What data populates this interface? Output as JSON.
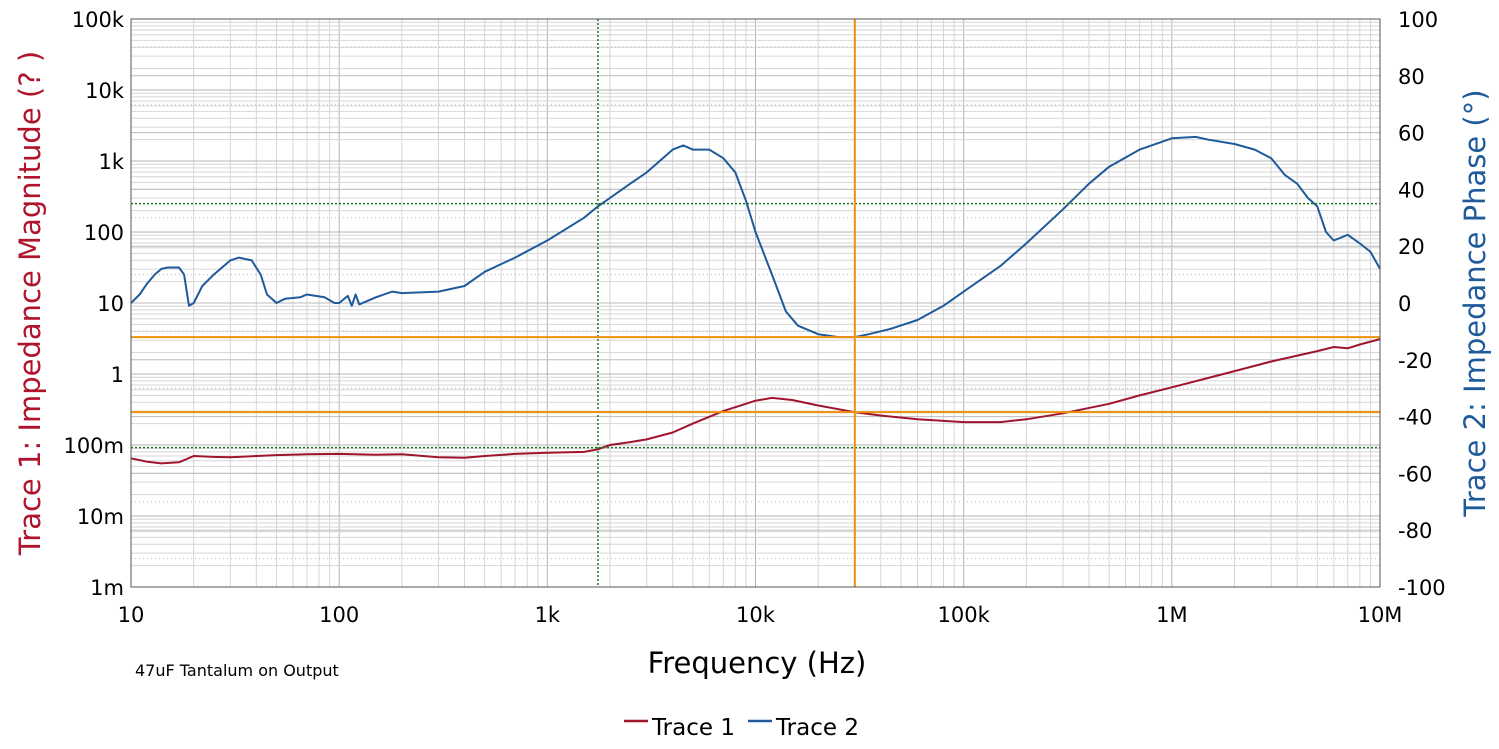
{
  "chart_data": {
    "type": "line",
    "xlabel": "Frequency (Hz)",
    "ylabel_left": "Trace 1: Impedance Magnitude (? )",
    "ylabel_right": "Trace 2: Impedance Phase (°)",
    "note": "47uF Tantalum on Output",
    "x_scale": "log",
    "xlim": [
      10,
      10000000
    ],
    "ylim_left": [
      0.001,
      100000
    ],
    "ylim_right": [
      -100,
      100
    ],
    "y_left_scale": "log",
    "grid": true,
    "legend_position": "bottom-center",
    "x_ticks": [
      {
        "value": 10,
        "label": "10"
      },
      {
        "value": 100,
        "label": "100"
      },
      {
        "value": 1000,
        "label": "1k"
      },
      {
        "value": 10000,
        "label": "10k"
      },
      {
        "value": 100000,
        "label": "100k"
      },
      {
        "value": 1000000,
        "label": "1M"
      },
      {
        "value": 10000000,
        "label": "10M"
      }
    ],
    "y_left_ticks": [
      {
        "value": 100000,
        "label": "100k"
      },
      {
        "value": 10000,
        "label": "10k"
      },
      {
        "value": 1000,
        "label": "1k"
      },
      {
        "value": 100,
        "label": "100"
      },
      {
        "value": 10,
        "label": "10"
      },
      {
        "value": 1,
        "label": "1"
      },
      {
        "value": 0.1,
        "label": "100m"
      },
      {
        "value": 0.01,
        "label": "10m"
      },
      {
        "value": 0.001,
        "label": "1m"
      }
    ],
    "y_right_ticks": [
      {
        "value": 100,
        "label": "100"
      },
      {
        "value": 80,
        "label": "80"
      },
      {
        "value": 60,
        "label": "60"
      },
      {
        "value": 40,
        "label": "40"
      },
      {
        "value": 20,
        "label": "20"
      },
      {
        "value": 0,
        "label": "0"
      },
      {
        "value": -20,
        "label": "-20"
      },
      {
        "value": -40,
        "label": "-40"
      },
      {
        "value": -60,
        "label": "-60"
      },
      {
        "value": -80,
        "label": "-80"
      },
      {
        "value": -100,
        "label": "-100"
      }
    ],
    "cursors": {
      "green": {
        "color": "#1a7a1a",
        "x": 1750,
        "y_left": 0.092,
        "y_right": 35
      },
      "orange": {
        "color": "#f0900a",
        "x": 30000,
        "y_left": 0.29,
        "y_right": -12
      }
    },
    "series": [
      {
        "name": "Trace 1",
        "axis": "left",
        "color": "#a0142c",
        "points": [
          [
            10,
            0.065
          ],
          [
            12,
            0.058
          ],
          [
            14,
            0.055
          ],
          [
            17,
            0.057
          ],
          [
            20,
            0.07
          ],
          [
            25,
            0.068
          ],
          [
            30,
            0.067
          ],
          [
            40,
            0.07
          ],
          [
            50,
            0.072
          ],
          [
            70,
            0.074
          ],
          [
            100,
            0.075
          ],
          [
            150,
            0.073
          ],
          [
            200,
            0.074
          ],
          [
            300,
            0.067
          ],
          [
            400,
            0.066
          ],
          [
            500,
            0.07
          ],
          [
            700,
            0.075
          ],
          [
            1000,
            0.078
          ],
          [
            1500,
            0.08
          ],
          [
            1750,
            0.087
          ],
          [
            2000,
            0.1
          ],
          [
            2500,
            0.11
          ],
          [
            3000,
            0.12
          ],
          [
            4000,
            0.15
          ],
          [
            5000,
            0.2
          ],
          [
            7000,
            0.3
          ],
          [
            10000,
            0.42
          ],
          [
            12000,
            0.46
          ],
          [
            15000,
            0.43
          ],
          [
            20000,
            0.36
          ],
          [
            30000,
            0.29
          ],
          [
            40000,
            0.26
          ],
          [
            60000,
            0.23
          ],
          [
            100000,
            0.21
          ],
          [
            150000,
            0.21
          ],
          [
            200000,
            0.23
          ],
          [
            300000,
            0.28
          ],
          [
            500000,
            0.38
          ],
          [
            700000,
            0.5
          ],
          [
            1000000,
            0.65
          ],
          [
            1500000,
            0.88
          ],
          [
            2000000,
            1.1
          ],
          [
            3000000,
            1.5
          ],
          [
            5000000,
            2.1
          ],
          [
            6000000,
            2.4
          ],
          [
            7000000,
            2.3
          ],
          [
            8000000,
            2.6
          ],
          [
            10000000,
            3.1
          ]
        ]
      },
      {
        "name": "Trace 2",
        "axis": "right",
        "color": "#1f5a9a",
        "points": [
          [
            10,
            0
          ],
          [
            11,
            3
          ],
          [
            12,
            7
          ],
          [
            13,
            10
          ],
          [
            14,
            12
          ],
          [
            15,
            12.5
          ],
          [
            17,
            12.5
          ],
          [
            18,
            10
          ],
          [
            19,
            -1
          ],
          [
            20,
            0
          ],
          [
            22,
            6
          ],
          [
            25,
            10
          ],
          [
            30,
            15
          ],
          [
            33,
            16
          ],
          [
            38,
            15
          ],
          [
            42,
            10
          ],
          [
            45,
            3
          ],
          [
            50,
            0
          ],
          [
            55,
            1.5
          ],
          [
            65,
            2
          ],
          [
            70,
            3
          ],
          [
            85,
            2
          ],
          [
            95,
            0
          ],
          [
            100,
            0
          ],
          [
            110,
            2.5
          ],
          [
            115,
            -1
          ],
          [
            120,
            3
          ],
          [
            125,
            -0.5
          ],
          [
            150,
            2
          ],
          [
            180,
            4
          ],
          [
            200,
            3.5
          ],
          [
            300,
            4
          ],
          [
            400,
            6
          ],
          [
            500,
            11
          ],
          [
            700,
            16
          ],
          [
            1000,
            22
          ],
          [
            1500,
            30
          ],
          [
            1750,
            34
          ],
          [
            2000,
            37
          ],
          [
            2500,
            42
          ],
          [
            3000,
            46
          ],
          [
            4000,
            54
          ],
          [
            4500,
            55.5
          ],
          [
            5000,
            54
          ],
          [
            6000,
            54
          ],
          [
            7000,
            51
          ],
          [
            8000,
            46
          ],
          [
            9000,
            36
          ],
          [
            10000,
            25
          ],
          [
            12000,
            10
          ],
          [
            14000,
            -3
          ],
          [
            16000,
            -8
          ],
          [
            20000,
            -11
          ],
          [
            25000,
            -12
          ],
          [
            30000,
            -12
          ],
          [
            35000,
            -11
          ],
          [
            45000,
            -9
          ],
          [
            60000,
            -6
          ],
          [
            80000,
            -1
          ],
          [
            100000,
            4
          ],
          [
            150000,
            13
          ],
          [
            200000,
            21
          ],
          [
            300000,
            33
          ],
          [
            400000,
            42
          ],
          [
            500000,
            48
          ],
          [
            700000,
            54
          ],
          [
            1000000,
            58
          ],
          [
            1300000,
            58.5
          ],
          [
            1500000,
            57.5
          ],
          [
            2000000,
            56
          ],
          [
            2500000,
            54
          ],
          [
            3000000,
            51
          ],
          [
            3500000,
            45
          ],
          [
            4000000,
            42
          ],
          [
            4500000,
            37
          ],
          [
            5000000,
            34
          ],
          [
            5500000,
            25
          ],
          [
            6000000,
            22
          ],
          [
            7000000,
            24
          ],
          [
            8000000,
            21
          ],
          [
            9000000,
            18
          ],
          [
            10000000,
            12
          ]
        ]
      }
    ]
  }
}
